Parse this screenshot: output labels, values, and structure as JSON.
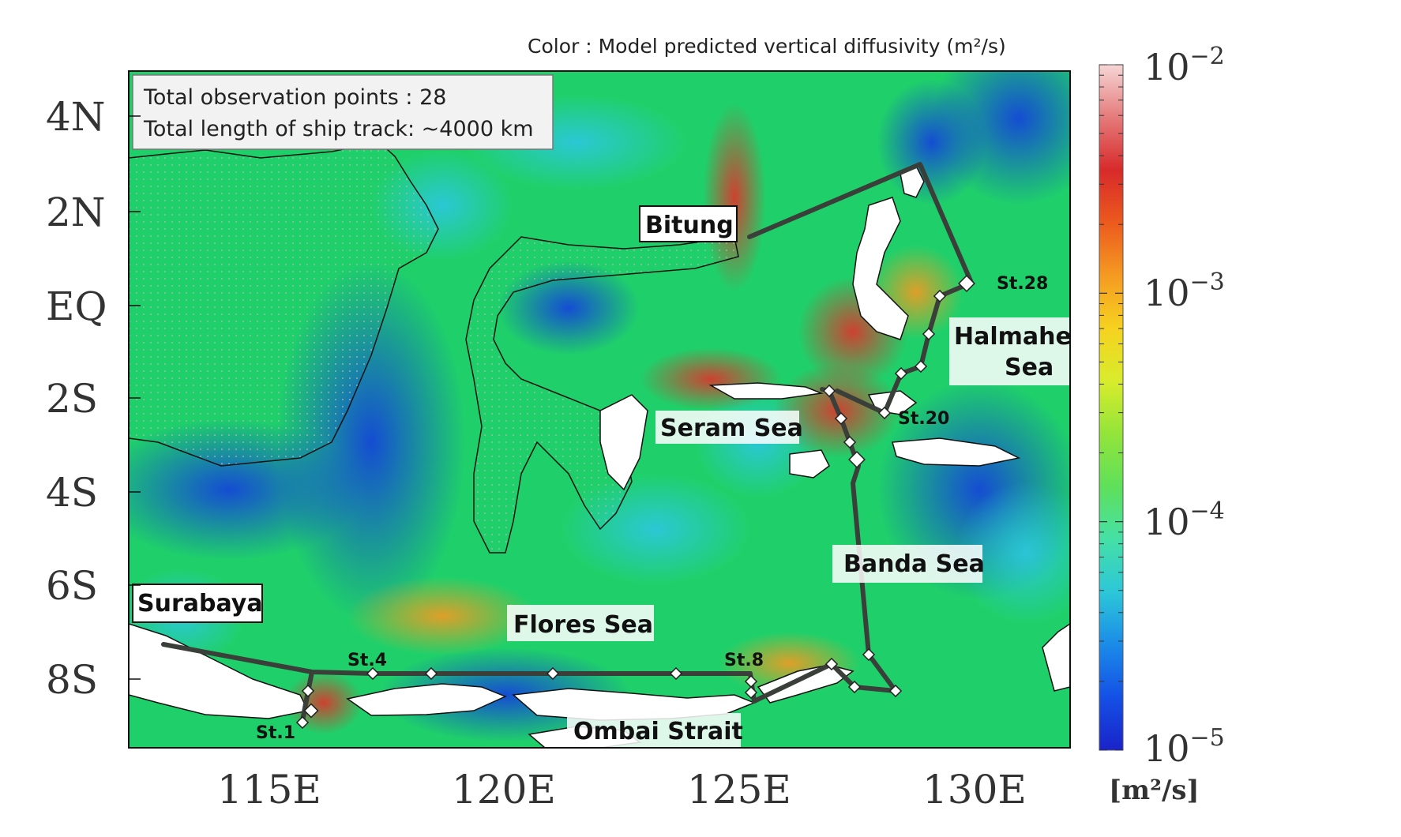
{
  "figure": {
    "color_caption": "Color : Model predicted vertical diffusivity (m²/s)",
    "info_box": {
      "line1": "Total observation points : 28",
      "line2": "Total length of ship track: ~4000 km"
    },
    "lat_labels": [
      "4N",
      "2N",
      "EQ",
      "2S",
      "4S",
      "6S",
      "8S"
    ],
    "lon_labels": [
      "115E",
      "120E",
      "125E",
      "130E"
    ],
    "colorbar": {
      "ticks": [
        {
          "base": "10",
          "exp": "−2"
        },
        {
          "base": "10",
          "exp": "−3"
        },
        {
          "base": "10",
          "exp": "−4"
        },
        {
          "base": "10",
          "exp": "−5"
        }
      ],
      "unit": "[m²/s]",
      "stops": [
        "#1a23c9",
        "#1450e6",
        "#1b8be8",
        "#2cc7d8",
        "#45e0a6",
        "#5fe05a",
        "#93e43a",
        "#d8ec2c",
        "#f6d21f",
        "#f59a22",
        "#ec5a1e",
        "#d82a2a",
        "#e57a7a",
        "#f6d6d6"
      ]
    },
    "place_labels": [
      {
        "name": "bitung-label",
        "text": "Bitung"
      },
      {
        "name": "halmahera-sea-label",
        "text": "Halmahera\nSea"
      },
      {
        "name": "seram-sea-label",
        "text": "Seram Sea"
      },
      {
        "name": "banda-sea-label",
        "text": "Banda Sea"
      },
      {
        "name": "flores-sea-label",
        "text": "Flores Sea"
      },
      {
        "name": "surabaya-label",
        "text": "Surabaya"
      },
      {
        "name": "ombai-strait-label",
        "text": "Ombai Strait"
      }
    ],
    "station_labels": [
      "St.1",
      "St.4",
      "St.8",
      "St.20",
      "St.28"
    ],
    "colors": {
      "ocean_base": "#1fd06a",
      "ship_track": "#3a3f3a",
      "land": "#ffffff"
    }
  }
}
